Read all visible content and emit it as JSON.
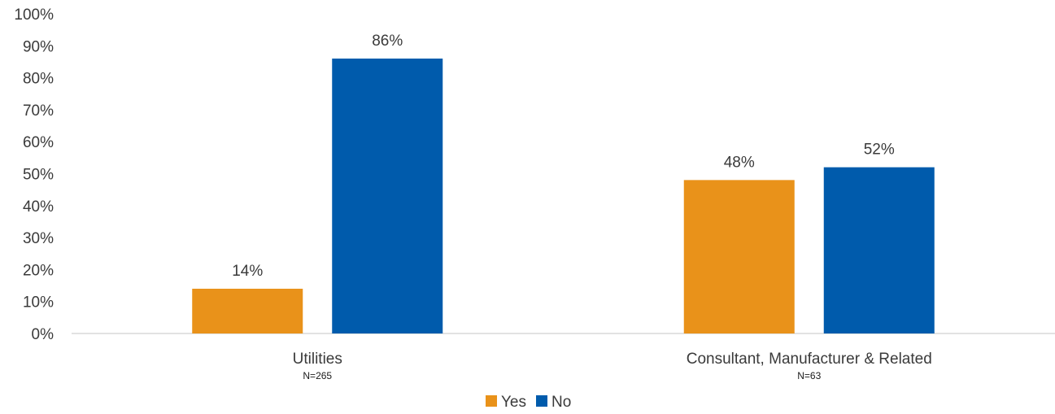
{
  "chart_data": {
    "type": "bar",
    "categories": [
      "Utilities",
      "Consultant, Manufacturer & Related"
    ],
    "category_notes": [
      "N=265",
      "N=63"
    ],
    "series": [
      {
        "name": "Yes",
        "values": [
          14,
          48
        ],
        "labels": [
          "14%",
          "48%"
        ],
        "color": "#E9921A"
      },
      {
        "name": "No",
        "values": [
          86,
          52
        ],
        "labels": [
          "86%",
          "52%"
        ],
        "color": "#005BAC"
      }
    ],
    "ylim": [
      0,
      100
    ],
    "yticks": [
      "0%",
      "10%",
      "20%",
      "30%",
      "40%",
      "50%",
      "60%",
      "70%",
      "80%",
      "90%",
      "100%"
    ],
    "grid": false,
    "legend_position": "bottom-center",
    "axis_color": "#d9d9d9"
  }
}
